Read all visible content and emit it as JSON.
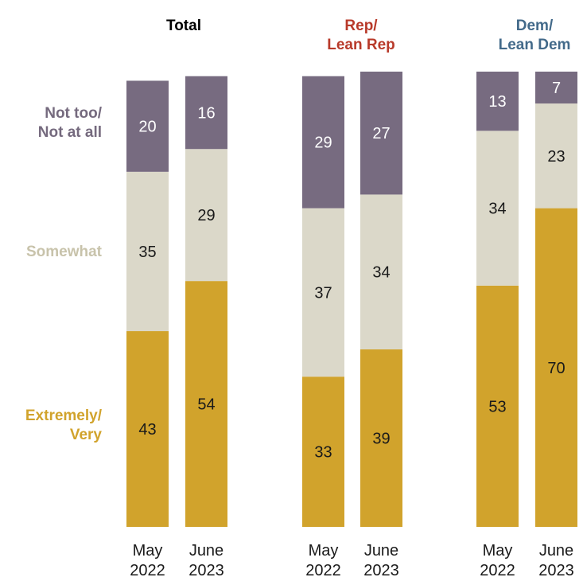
{
  "chart_data": {
    "type": "bar",
    "stacked": true,
    "normalized": true,
    "row_labels": [
      {
        "key": "not",
        "lines": [
          "Not too/",
          "Not at all"
        ],
        "color": "#756a7e"
      },
      {
        "key": "somewhat",
        "lines": [
          "Somewhat"
        ],
        "color": "#c8c3ab"
      },
      {
        "key": "very",
        "lines": [
          "Extremely/",
          "Very"
        ],
        "color": "#d1a32c"
      }
    ],
    "series": [
      {
        "name": "Extremely/Very",
        "color": "#d1a32c",
        "text_color": "#1a1a1a"
      },
      {
        "name": "Somewhat",
        "color": "#dbd8c9",
        "text_color": "#1a1a1a"
      },
      {
        "name": "Not too/Not at all",
        "color": "#776b80",
        "text_color": "#ffffff"
      }
    ],
    "panels": [
      {
        "title_lines": [
          "Total"
        ],
        "title_color": "#000000",
        "bars": [
          {
            "label_lines": [
              "May",
              "2022"
            ],
            "values": [
              43,
              35,
              20
            ]
          },
          {
            "label_lines": [
              "June",
              "2023"
            ],
            "values": [
              54,
              29,
              16
            ]
          }
        ]
      },
      {
        "title_lines": [
          "Rep/",
          "Lean Rep"
        ],
        "title_color": "#b83a2a",
        "bars": [
          {
            "label_lines": [
              "May",
              "2022"
            ],
            "values": [
              33,
              37,
              29
            ]
          },
          {
            "label_lines": [
              "June",
              "2023"
            ],
            "values": [
              39,
              34,
              27
            ]
          }
        ]
      },
      {
        "title_lines": [
          "Dem/",
          "Lean Dem"
        ],
        "title_color": "#436a8a",
        "bars": [
          {
            "label_lines": [
              "May",
              "2022"
            ],
            "values": [
              53,
              34,
              13
            ]
          },
          {
            "label_lines": [
              "June",
              "2023"
            ],
            "values": [
              70,
              23,
              7
            ]
          }
        ]
      }
    ]
  }
}
